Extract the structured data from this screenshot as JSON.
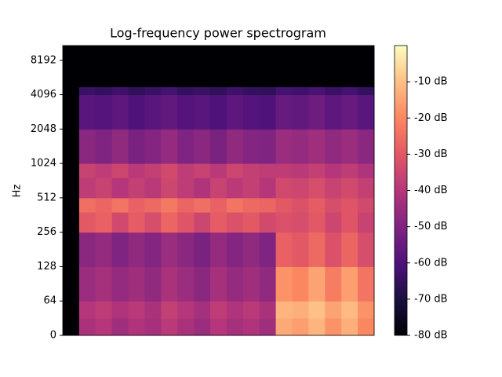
{
  "chart_data": {
    "type": "heatmap",
    "title": "Log-frequency power spectrogram",
    "ylabel": "Hz",
    "yscale": "symlog",
    "linthresh": 64,
    "ylim": [
      0,
      11025
    ],
    "yticks": [
      0,
      64,
      128,
      256,
      512,
      1024,
      2048,
      4096,
      8192
    ],
    "y_edges": [
      0,
      32,
      64,
      128,
      256,
      384,
      512,
      768,
      1024,
      2048,
      4096,
      4800,
      11025
    ],
    "colormap": "magma",
    "values": [
      [
        -80,
        -42,
        -40,
        -44,
        -41,
        -43,
        -39,
        -42,
        -45,
        -40,
        -43,
        -41,
        -44,
        -14,
        -16,
        -12,
        -18,
        -13,
        -20
      ],
      [
        -80,
        -40,
        -38,
        -41,
        -39,
        -42,
        -37,
        -40,
        -43,
        -38,
        -41,
        -39,
        -42,
        -12,
        -13,
        -10,
        -15,
        -11,
        -18
      ],
      [
        -80,
        -45,
        -43,
        -46,
        -44,
        -47,
        -42,
        -45,
        -48,
        -43,
        -46,
        -44,
        -47,
        -18,
        -20,
        -15,
        -22,
        -16,
        -24
      ],
      [
        -80,
        -48,
        -46,
        -50,
        -47,
        -49,
        -45,
        -48,
        -51,
        -46,
        -49,
        -47,
        -50,
        -28,
        -30,
        -26,
        -32,
        -27,
        -33
      ],
      [
        -80,
        -30,
        -28,
        -34,
        -29,
        -33,
        -27,
        -31,
        -35,
        -29,
        -32,
        -30,
        -34,
        -32,
        -33,
        -30,
        -35,
        -31,
        -36
      ],
      [
        -80,
        -25,
        -27,
        -24,
        -28,
        -26,
        -23,
        -27,
        -25,
        -28,
        -24,
        -26,
        -27,
        -30,
        -32,
        -29,
        -33,
        -31,
        -34
      ],
      [
        -80,
        -38,
        -36,
        -40,
        -37,
        -39,
        -35,
        -38,
        -41,
        -36,
        -39,
        -37,
        -40,
        -34,
        -35,
        -33,
        -36,
        -34,
        -37
      ],
      [
        -80,
        -36,
        -38,
        -35,
        -39,
        -37,
        -34,
        -38,
        -36,
        -39,
        -35,
        -37,
        -38,
        -38,
        -39,
        -37,
        -40,
        -38,
        -41
      ],
      [
        -80,
        -48,
        -50,
        -47,
        -51,
        -49,
        -46,
        -50,
        -48,
        -51,
        -47,
        -49,
        -50,
        -45,
        -46,
        -44,
        -47,
        -45,
        -48
      ],
      [
        -80,
        -58,
        -59,
        -57,
        -60,
        -58,
        -56,
        -59,
        -58,
        -60,
        -57,
        -59,
        -60,
        -55,
        -56,
        -54,
        -57,
        -55,
        -58
      ],
      [
        -80,
        -64,
        -65,
        -63,
        -66,
        -64,
        -62,
        -65,
        -64,
        -66,
        -63,
        -65,
        -66,
        -62,
        -63,
        -61,
        -64,
        -62,
        -65
      ],
      [
        -80,
        -80,
        -80,
        -80,
        -80,
        -80,
        -80,
        -80,
        -80,
        -80,
        -80,
        -80,
        -80,
        -80,
        -80,
        -80,
        -80,
        -80,
        -80
      ]
    ],
    "colorbar": {
      "clim": [
        -80,
        0
      ],
      "ticks": [
        {
          "value": -10,
          "label": "-10 dB"
        },
        {
          "value": -20,
          "label": "-20 dB"
        },
        {
          "value": -30,
          "label": "-30 dB"
        },
        {
          "value": -40,
          "label": "-40 dB"
        },
        {
          "value": -50,
          "label": "-50 dB"
        },
        {
          "value": -60,
          "label": "-60 dB"
        },
        {
          "value": -70,
          "label": "-70 dB"
        },
        {
          "value": -80,
          "label": "-80 dB"
        }
      ]
    }
  }
}
